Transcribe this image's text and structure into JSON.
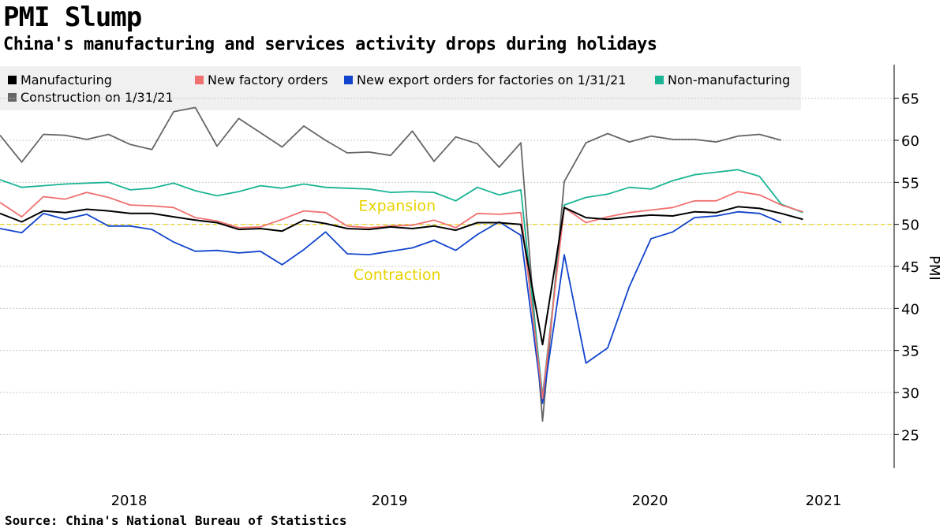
{
  "chart_data": {
    "type": "line",
    "title": "PMI Slump",
    "subtitle": "China's manufacturing and services activity drops during holidays",
    "ylabel": "PMI",
    "ylim": [
      21,
      69
    ],
    "yticks": [
      25,
      30,
      35,
      40,
      45,
      50,
      55,
      60,
      65
    ],
    "xtick_labels": [
      {
        "label": "2018",
        "index": 5
      },
      {
        "label": "2019",
        "index": 17
      },
      {
        "label": "2020",
        "index": 29
      },
      {
        "label": "2021",
        "index": 37
      }
    ],
    "reference_line": 50,
    "annotations": [
      {
        "text": "Expansion",
        "index": 18.3,
        "value": 51.6
      },
      {
        "text": "Contraction",
        "index": 18.3,
        "value": 43.4
      }
    ],
    "source": "Source: China's National Bureau of Statistics",
    "series": [
      {
        "name": "Manufacturing",
        "color": "#000000",
        "values": [
          51.3,
          50.3,
          51.6,
          51.4,
          51.8,
          51.6,
          51.3,
          51.3,
          50.9,
          50.5,
          50.2,
          49.4,
          49.5,
          49.2,
          50.5,
          50.1,
          49.5,
          49.4,
          49.7,
          49.5,
          49.8,
          49.3,
          50.2,
          50.2,
          50.0,
          35.7,
          52.0,
          50.8,
          50.6,
          50.9,
          51.1,
          51.0,
          51.5,
          51.4,
          52.1,
          51.9,
          51.3,
          50.6
        ]
      },
      {
        "name": "New factory orders",
        "color": "#f07070",
        "values": [
          52.6,
          50.9,
          53.3,
          53.0,
          53.8,
          53.2,
          52.3,
          52.2,
          52.0,
          50.8,
          50.4,
          49.6,
          49.7,
          50.6,
          51.6,
          51.4,
          49.8,
          49.6,
          49.8,
          49.9,
          50.5,
          49.6,
          51.3,
          51.2,
          51.4,
          29.3,
          52.0,
          50.2,
          50.9,
          51.4,
          51.7,
          52.0,
          52.8,
          52.8,
          53.9,
          53.5,
          52.3,
          51.5
        ]
      },
      {
        "name": "New export orders for factories on 1/31/21",
        "color": "#1144cc",
        "values": [
          49.5,
          49.0,
          51.3,
          50.6,
          51.2,
          49.8,
          49.8,
          49.4,
          47.9,
          46.8,
          46.9,
          46.6,
          46.8,
          45.2,
          47.0,
          49.1,
          46.5,
          46.4,
          46.8,
          47.2,
          48.1,
          46.9,
          48.8,
          50.3,
          48.7,
          28.7,
          46.4,
          33.5,
          35.3,
          42.6,
          48.3,
          49.1,
          50.8,
          51.0,
          51.5,
          51.3,
          50.2
        ]
      },
      {
        "name": "Non-manufacturing",
        "color": "#1ab394",
        "values": [
          55.3,
          54.4,
          54.6,
          54.8,
          54.9,
          55.0,
          54.1,
          54.3,
          54.9,
          54.0,
          53.4,
          53.9,
          54.6,
          54.3,
          54.8,
          54.4,
          54.3,
          54.2,
          53.8,
          53.9,
          53.8,
          52.8,
          54.4,
          53.5,
          54.1,
          29.6,
          52.3,
          53.2,
          53.6,
          54.4,
          54.2,
          55.2,
          55.9,
          56.2,
          56.5,
          55.7,
          52.4,
          51.4
        ]
      },
      {
        "name": "Construction on 1/31/21",
        "color": "#666666",
        "values": [
          60.6,
          57.4,
          60.7,
          60.6,
          60.1,
          60.7,
          59.5,
          58.9,
          63.4,
          63.9,
          59.3,
          62.6,
          60.9,
          59.2,
          61.7,
          60.0,
          58.5,
          58.6,
          58.2,
          61.1,
          57.5,
          60.4,
          59.6,
          56.8,
          59.7,
          26.6,
          55.1,
          59.7,
          60.8,
          59.8,
          60.5,
          60.1,
          60.1,
          59.8,
          60.5,
          60.7,
          60.0
        ]
      }
    ]
  }
}
